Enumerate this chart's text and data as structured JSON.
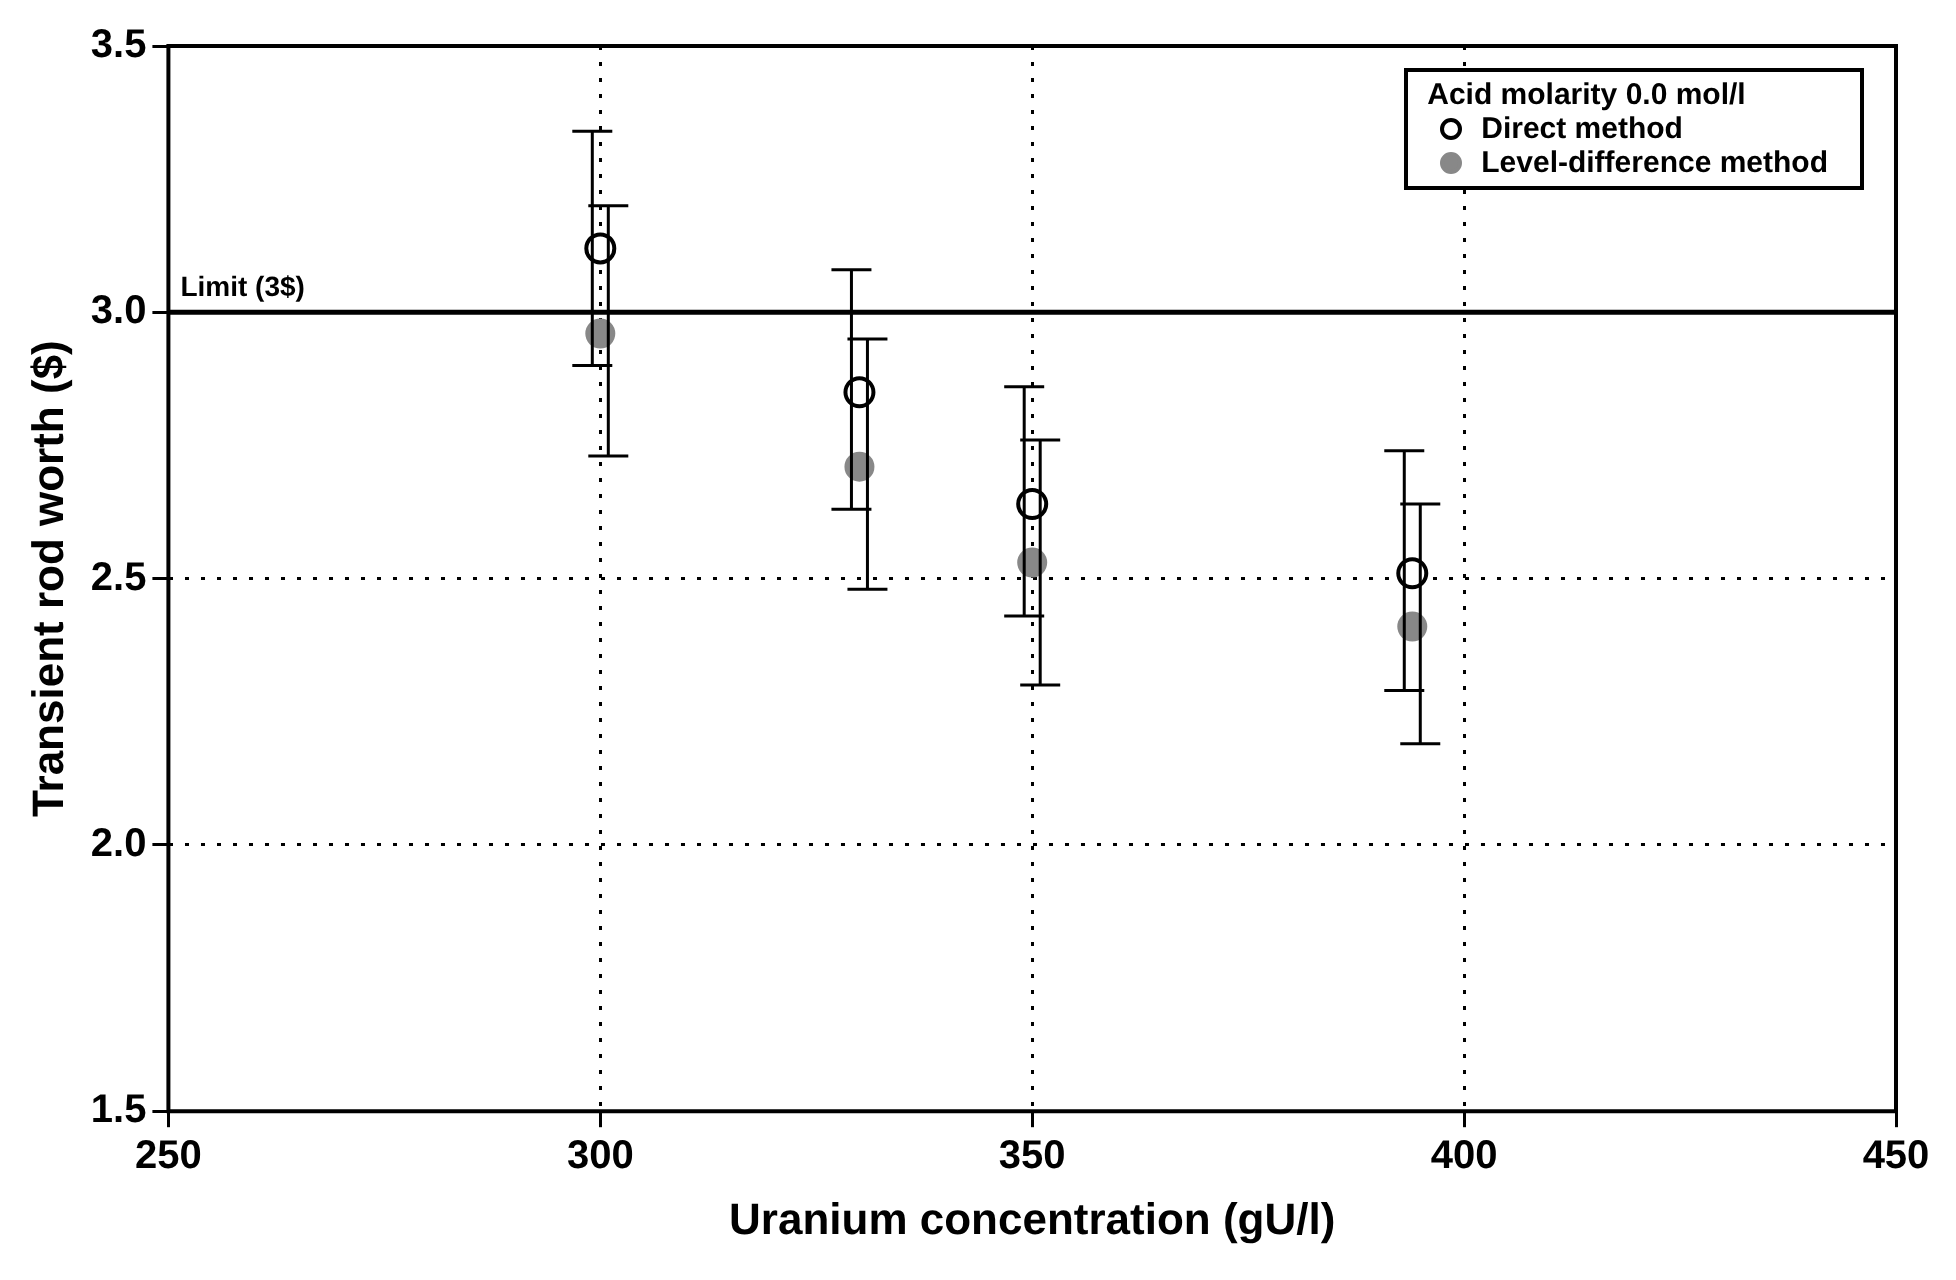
{
  "chart_data": {
    "type": "scatter",
    "xlabel": "Uranium concentration (gU/l)",
    "ylabel": "Transient rod worth ($)",
    "xlim": [
      250,
      450
    ],
    "xticks": [
      250,
      300,
      350,
      400,
      450
    ],
    "ylim": [
      1.5,
      3.5
    ],
    "yticks": [
      1.5,
      {
        "value": 2,
        "label": "2.0"
      },
      2.5,
      {
        "value": 3,
        "label": "3.0"
      },
      3.5
    ],
    "grid": true,
    "legend": "top right",
    "legend_title": "Acid molarity 0.0 mol/l",
    "marker": "circle",
    "ref_lines": [
      {
        "axis": "y",
        "value": 3.0,
        "label": "Limit (3$)",
        "color": "#000000"
      }
    ],
    "series": [
      {
        "name": "Direct method",
        "color": "#000000",
        "x": [
          300,
          330,
          350,
          394
        ],
        "values": [
          3.12,
          2.85,
          2.64,
          2.51
        ],
        "errors": [
          [
            2.9,
            3.34
          ],
          [
            2.63,
            3.08
          ],
          [
            2.43,
            2.86
          ],
          [
            2.29,
            2.74
          ]
        ]
      },
      {
        "name": "Level-difference method",
        "color": "#888888",
        "x": [
          300,
          330,
          350,
          394
        ],
        "values": [
          2.96,
          2.71,
          2.53,
          2.41
        ],
        "errors": [
          [
            2.73,
            3.2
          ],
          [
            2.48,
            2.95
          ],
          [
            2.3,
            2.76
          ],
          [
            2.19,
            2.64
          ]
        ]
      }
    ]
  }
}
